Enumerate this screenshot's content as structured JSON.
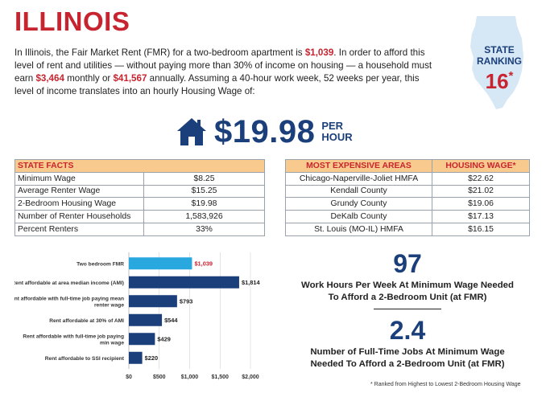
{
  "title": "ILLINOIS",
  "intro": {
    "p1": "In Illinois, the Fair Market Rent (FMR) for a two-bedroom apartment is ",
    "fmr": "$1,039",
    "p2": ". In order to afford this level of rent and utilities — without paying more than 30% of income on housing — a household must earn ",
    "monthly": "$3,464",
    "p3": " monthly or ",
    "annual": "$41,567",
    "p4": " annually. Assuming a 40-hour work week, 52 weeks per year, this level of income translates into an hourly Housing Wage of:"
  },
  "ranking": {
    "label_line1": "STATE",
    "label_line2": "RANKING",
    "value": "16",
    "marker": "*"
  },
  "housing_wage": {
    "value": "$19.98",
    "unit_line1": "PER",
    "unit_line2": "HOUR",
    "icon": "house-icon"
  },
  "state_facts": {
    "header": "STATE FACTS",
    "rows": [
      {
        "label": "Minimum Wage",
        "value": "$8.25"
      },
      {
        "label": "Average Renter Wage",
        "value": "$15.25"
      },
      {
        "label": "2-Bedroom Housing Wage",
        "value": "$19.98"
      },
      {
        "label": "Number of Renter Households",
        "value": "1,583,926"
      },
      {
        "label": "Percent Renters",
        "value": "33%"
      }
    ]
  },
  "expensive_areas": {
    "header_area": "MOST EXPENSIVE AREAS",
    "header_wage": "HOUSING WAGE*",
    "rows": [
      {
        "area": "Chicago-Naperville-Joliet HMFA",
        "wage": "$22.62"
      },
      {
        "area": "Kendall County",
        "wage": "$21.02"
      },
      {
        "area": "Grundy County",
        "wage": "$19.06"
      },
      {
        "area": "DeKalb County",
        "wage": "$17.13"
      },
      {
        "area": "St. Louis (MO-IL) HMFA",
        "wage": "$16.15"
      }
    ]
  },
  "chart_data": {
    "type": "bar",
    "orientation": "horizontal",
    "title": "",
    "xlabel": "",
    "ylabel": "",
    "xlim": [
      0,
      2000
    ],
    "xticks": [
      "$0",
      "$500",
      "$1,000",
      "$1,500",
      "$2,000"
    ],
    "xtick_values": [
      0,
      500,
      1000,
      1500,
      2000
    ],
    "categories": [
      [
        "Two bedroom FMR"
      ],
      [
        "Rent affordable at area median income (AMI)"
      ],
      [
        "Rent affordable with full-time job paying mean",
        "renter wage"
      ],
      [
        "Rent affordable at 30% of AMI"
      ],
      [
        "Rent affordable with full-time job paying",
        "min wage"
      ],
      [
        "Rent affordable to SSI recipient"
      ]
    ],
    "values": [
      1039,
      1814,
      793,
      544,
      429,
      220
    ],
    "labels": [
      "$1,039",
      "$1,814",
      "$793",
      "$544",
      "$429",
      "$220"
    ],
    "colors": [
      "#29a8e0",
      "#1b3f7a",
      "#1b3f7a",
      "#1b3f7a",
      "#1b3f7a",
      "#1b3f7a"
    ],
    "label_colors": [
      "#c8242f",
      "#222222",
      "#222222",
      "#222222",
      "#222222",
      "#222222"
    ]
  },
  "stats": {
    "hours_value": "97",
    "hours_text_line1": "Work Hours Per Week At Minimum Wage Needed",
    "hours_text_line2": "To Afford a 2-Bedroom Unit (at FMR)",
    "jobs_value": "2.4",
    "jobs_text_line1": "Number of Full-Time Jobs At Minimum Wage",
    "jobs_text_line2": "Needed To Afford a 2-Bedroom Unit (at FMR)"
  },
  "footnote": "* Ranked from Highest to Lowest 2-Bedroom Housing Wage",
  "colors": {
    "red": "#c8242f",
    "navy": "#1b3f7a",
    "light_blue": "#29a8e0",
    "header_bg": "#f8ca8d",
    "map_blue": "#d6e7f5"
  }
}
